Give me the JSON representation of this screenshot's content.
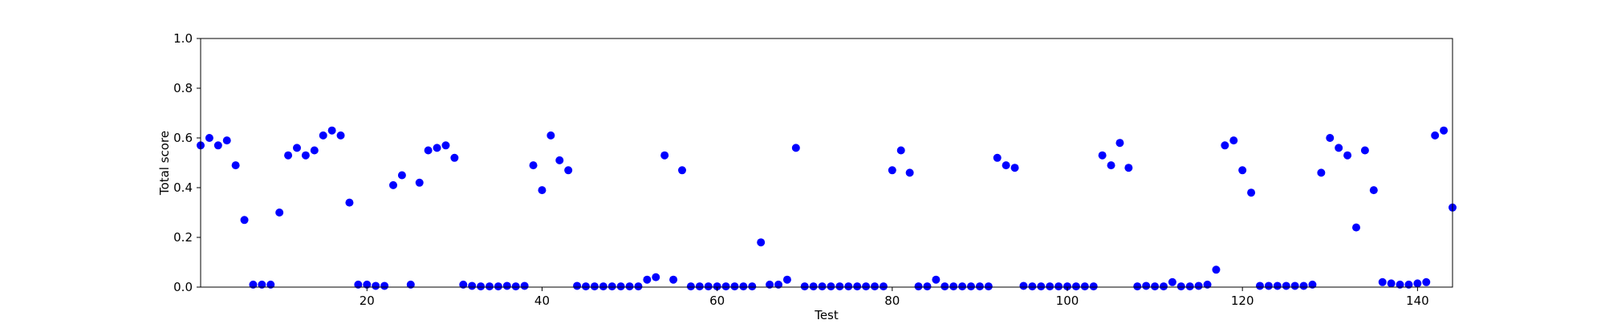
{
  "chart_data": {
    "type": "scatter",
    "title": "",
    "xlabel": "Test",
    "ylabel": "Total score",
    "xlim": [
      1,
      144
    ],
    "ylim": [
      0.0,
      1.0
    ],
    "xticks": [
      20,
      40,
      60,
      80,
      100,
      120,
      140
    ],
    "yticks": [
      0.0,
      0.2,
      0.4,
      0.6,
      0.8,
      1.0
    ],
    "ytick_labels": [
      "0.0",
      "0.2",
      "0.4",
      "0.6",
      "0.8",
      "1.0"
    ],
    "grid": false,
    "legend": "none",
    "marker_color": "#0000ff",
    "series": [
      {
        "x": [
          1,
          2,
          3,
          4,
          5,
          6,
          7,
          8,
          9,
          10,
          11,
          12,
          13,
          14,
          15,
          16,
          17,
          18,
          19,
          20,
          21,
          22,
          23,
          24,
          25,
          26,
          27,
          28,
          29,
          30,
          31,
          32,
          33,
          34,
          35,
          36,
          37,
          38,
          39,
          40,
          41,
          42,
          43,
          44,
          45,
          46,
          47,
          48,
          49,
          50,
          51,
          52,
          53,
          54,
          55,
          56,
          57,
          58,
          59,
          60,
          61,
          62,
          63,
          64,
          65,
          66,
          67,
          68,
          69,
          70,
          71,
          72,
          73,
          74,
          75,
          76,
          77,
          78,
          79,
          80,
          81,
          82,
          83,
          84,
          85,
          86,
          87,
          88,
          89,
          90,
          91,
          92,
          93,
          94,
          95,
          96,
          97,
          98,
          99,
          100,
          101,
          102,
          103,
          104,
          105,
          106,
          107,
          108,
          109,
          110,
          111,
          112,
          113,
          114,
          115,
          116,
          117,
          118,
          119,
          120,
          121,
          122,
          123,
          124,
          125,
          126,
          127,
          128,
          129,
          130,
          131,
          132,
          133,
          134,
          135,
          136,
          137,
          138,
          139,
          140,
          141,
          142,
          143,
          144
        ],
        "y": [
          0.57,
          0.6,
          0.57,
          0.59,
          0.49,
          0.27,
          0.01,
          0.01,
          0.01,
          0.3,
          0.53,
          0.56,
          0.53,
          0.55,
          0.61,
          0.63,
          0.61,
          0.34,
          0.01,
          0.01,
          0.005,
          0.005,
          0.41,
          0.45,
          0.01,
          0.42,
          0.55,
          0.56,
          0.57,
          0.52,
          0.01,
          0.005,
          0.003,
          0.003,
          0.003,
          0.005,
          0.003,
          0.005,
          0.49,
          0.39,
          0.61,
          0.51,
          0.47,
          0.005,
          0.003,
          0.003,
          0.003,
          0.003,
          0.003,
          0.003,
          0.003,
          0.03,
          0.04,
          0.53,
          0.03,
          0.47,
          0.003,
          0.003,
          0.003,
          0.003,
          0.003,
          0.003,
          0.003,
          0.003,
          0.18,
          0.01,
          0.01,
          0.03,
          0.56,
          0.003,
          0.003,
          0.003,
          0.003,
          0.003,
          0.003,
          0.003,
          0.003,
          0.003,
          0.003,
          0.47,
          0.55,
          0.46,
          0.003,
          0.003,
          0.03,
          0.003,
          0.003,
          0.003,
          0.003,
          0.003,
          0.003,
          0.52,
          0.49,
          0.48,
          0.005,
          0.003,
          0.003,
          0.003,
          0.003,
          0.003,
          0.003,
          0.003,
          0.003,
          0.53,
          0.49,
          0.58,
          0.48,
          0.003,
          0.005,
          0.003,
          0.003,
          0.02,
          0.003,
          0.003,
          0.005,
          0.01,
          0.07,
          0.57,
          0.59,
          0.47,
          0.38,
          0.005,
          0.005,
          0.005,
          0.005,
          0.005,
          0.005,
          0.01,
          0.46,
          0.6,
          0.56,
          0.53,
          0.24,
          0.55,
          0.39,
          0.02,
          0.015,
          0.01,
          0.01,
          0.015,
          0.02,
          0.61,
          0.63,
          0.32
        ]
      }
    ]
  }
}
